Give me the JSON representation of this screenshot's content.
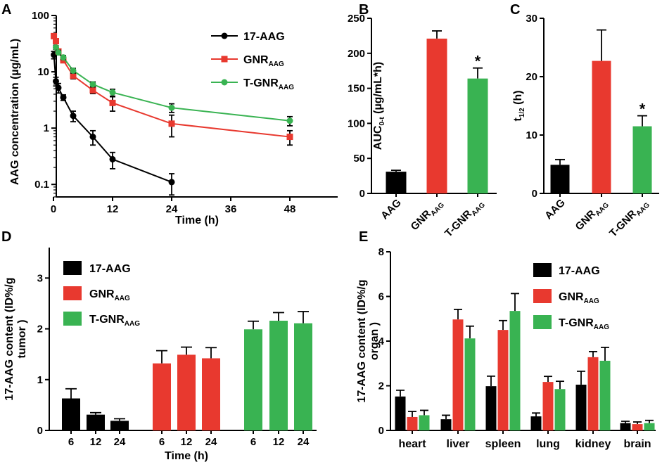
{
  "figure": {
    "panel_labels": [
      "A",
      "B",
      "C",
      "D",
      "E"
    ]
  },
  "colors": {
    "black": "#000000",
    "red": "#e8392f",
    "green": "#39b352"
  },
  "chart_data": [
    {
      "id": "A",
      "type": "line",
      "yscale": "log",
      "xlabel": "Time (h)",
      "ylabel": "AAG concentration (µg/mL)",
      "xlim": [
        0,
        50
      ],
      "ylim": [
        0.06,
        100
      ],
      "xticks": [
        0,
        12,
        24,
        36,
        48
      ],
      "yticks": [
        {
          "v": 0.1,
          "label": "0.1"
        },
        {
          "v": 1,
          "label": "1"
        },
        {
          "v": 10,
          "label": "10"
        },
        {
          "v": 100,
          "label": "100"
        }
      ],
      "series": [
        {
          "name": "17-AAG",
          "sub": "",
          "color": "#000000",
          "marker": "circle",
          "x": [
            0.083,
            0.5,
            1,
            2,
            4,
            8,
            12,
            24
          ],
          "y": [
            20,
            6.8,
            5.2,
            3.5,
            1.65,
            0.7,
            0.28,
            0.11
          ],
          "err": [
            3,
            1.2,
            1.0,
            0.4,
            0.35,
            0.2,
            0.09,
            0.045
          ]
        },
        {
          "name": "GNR",
          "sub": "AAG",
          "color": "#e8392f",
          "marker": "square",
          "x": [
            0.083,
            0.5,
            1,
            2,
            4,
            8,
            12,
            24,
            48
          ],
          "y": [
            43,
            35,
            23,
            16,
            8.5,
            4.7,
            2.8,
            1.2,
            0.7
          ],
          "err": [
            3,
            3,
            2,
            1.5,
            1.0,
            0.6,
            0.8,
            0.5,
            0.2
          ]
        },
        {
          "name": "T-GNR",
          "sub": "AAG",
          "color": "#39b352",
          "marker": "circle",
          "x": [
            0.5,
            1,
            2,
            4,
            8,
            12,
            24,
            48
          ],
          "y": [
            27,
            22,
            18,
            10.5,
            6,
            4.3,
            2.3,
            1.35
          ],
          "err": [
            2,
            2,
            1.5,
            1.0,
            0.6,
            0.6,
            0.4,
            0.25
          ]
        }
      ]
    },
    {
      "id": "B",
      "type": "bar",
      "ylabel": "AUC",
      "ylabel_sub": "0-t",
      "ylabel_tail": " (µg/mL*h)",
      "ylim": [
        0,
        250
      ],
      "yticks": [
        0,
        50,
        100,
        150,
        200,
        250
      ],
      "categories": [
        {
          "name": "AAG",
          "sub": ""
        },
        {
          "name": "GNR",
          "sub": "AAG"
        },
        {
          "name": "T-GNR",
          "sub": "AAG"
        }
      ],
      "values": [
        31,
        221,
        164
      ],
      "errors": [
        2,
        11,
        15
      ],
      "colors": [
        "#000000",
        "#e8392f",
        "#39b352"
      ],
      "annotations": [
        "",
        "",
        "*"
      ]
    },
    {
      "id": "C",
      "type": "bar",
      "ylabel": "t",
      "ylabel_sub": "1/2",
      "ylabel_tail": " (h)",
      "ylim": [
        0,
        30
      ],
      "yticks": [
        0,
        10,
        20,
        30
      ],
      "categories": [
        {
          "name": "AAG",
          "sub": ""
        },
        {
          "name": "GNR",
          "sub": "AAG"
        },
        {
          "name": "T-GNR",
          "sub": "AAG"
        }
      ],
      "values": [
        4.9,
        22.7,
        11.5
      ],
      "errors": [
        0.9,
        5.3,
        1.8
      ],
      "colors": [
        "#000000",
        "#e8392f",
        "#39b352"
      ],
      "annotations": [
        "",
        "",
        "*"
      ]
    },
    {
      "id": "D",
      "type": "bar",
      "xlabel": "Time (h)",
      "ylabel": "17-AAG content (ID%/g",
      "ylabel2": "tumor )",
      "ylim": [
        0,
        3.6
      ],
      "yticks": [
        0,
        1,
        2,
        3
      ],
      "categories": [
        "6",
        "12",
        "24",
        "6",
        "12",
        "24",
        "6",
        "12",
        "24"
      ],
      "values": [
        0.63,
        0.31,
        0.19,
        1.32,
        1.49,
        1.42,
        1.99,
        2.16,
        2.11
      ],
      "errors": [
        0.19,
        0.04,
        0.04,
        0.25,
        0.15,
        0.21,
        0.16,
        0.16,
        0.23
      ],
      "colors": [
        "#000000",
        "#000000",
        "#000000",
        "#e8392f",
        "#e8392f",
        "#e8392f",
        "#39b352",
        "#39b352",
        "#39b352"
      ],
      "legend": [
        {
          "name": "17-AAG",
          "sub": "",
          "color": "#000000"
        },
        {
          "name": "GNR",
          "sub": "AAG",
          "color": "#e8392f"
        },
        {
          "name": "T-GNR",
          "sub": "AAG",
          "color": "#39b352"
        }
      ]
    },
    {
      "id": "E",
      "type": "bar",
      "ylabel": "17-AAG content (ID%/g",
      "ylabel2": "organ )",
      "ylim": [
        0,
        8
      ],
      "yticks": [
        0,
        2,
        4,
        6,
        8
      ],
      "categories": [
        "heart",
        "liver",
        "spleen",
        "lung",
        "kidney",
        "brain"
      ],
      "series": [
        {
          "name": "17-AAG",
          "sub": "",
          "color": "#000000",
          "values": [
            1.52,
            0.5,
            1.98,
            0.63,
            2.05,
            0.33
          ],
          "errors": [
            0.28,
            0.18,
            0.45,
            0.15,
            0.6,
            0.08
          ]
        },
        {
          "name": "GNR",
          "sub": "AAG",
          "color": "#e8392f",
          "values": [
            0.6,
            4.97,
            4.5,
            2.17,
            3.28,
            0.28
          ],
          "errors": [
            0.25,
            0.45,
            0.42,
            0.25,
            0.25,
            0.1
          ]
        },
        {
          "name": "T-GNR",
          "sub": "AAG",
          "color": "#39b352",
          "values": [
            0.68,
            4.12,
            5.35,
            1.85,
            3.12,
            0.33
          ],
          "errors": [
            0.22,
            0.55,
            0.78,
            0.35,
            0.6,
            0.12
          ]
        }
      ]
    }
  ]
}
